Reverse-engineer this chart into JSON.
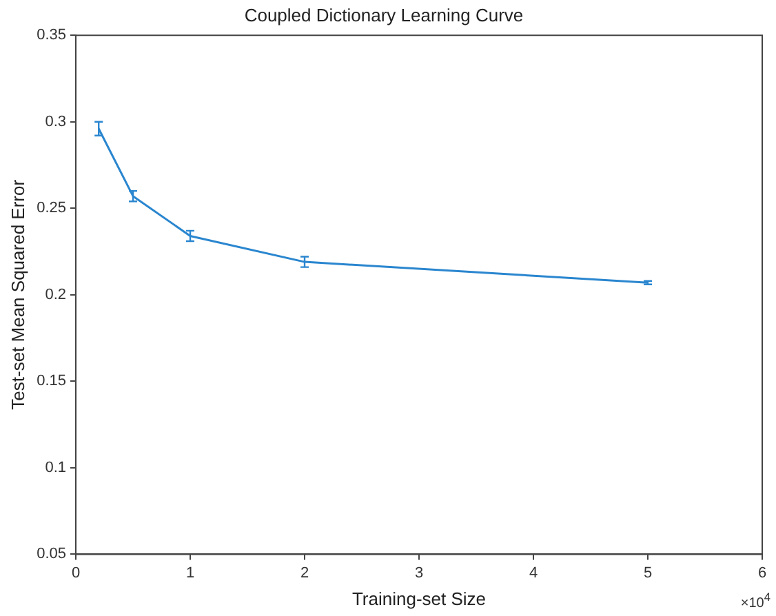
{
  "chart_data": {
    "type": "line",
    "title": "Coupled Dictionary Learning Curve",
    "xlabel": "Training-set Size",
    "ylabel": "Test-set Mean Squared Error",
    "x": [
      0.2,
      0.5,
      1,
      2,
      5
    ],
    "series": [
      {
        "color": "#2a86cf",
        "values": [
          0.296,
          0.257,
          0.234,
          0.219,
          0.207
        ],
        "errors": [
          0.004,
          0.003,
          0.003,
          0.003,
          0.001
        ]
      }
    ],
    "xlim": [
      0,
      6
    ],
    "xticks": [
      0,
      1,
      2,
      3,
      4,
      5,
      6
    ],
    "ylim": [
      0.05,
      0.35
    ],
    "yticks": [
      0.05,
      0.1,
      0.15,
      0.2,
      0.25,
      0.3,
      0.35
    ],
    "annotations": [
      "×10$^{4}$"
    ],
    "grid": false,
    "legend": false,
    "line_style": "solid"
  }
}
